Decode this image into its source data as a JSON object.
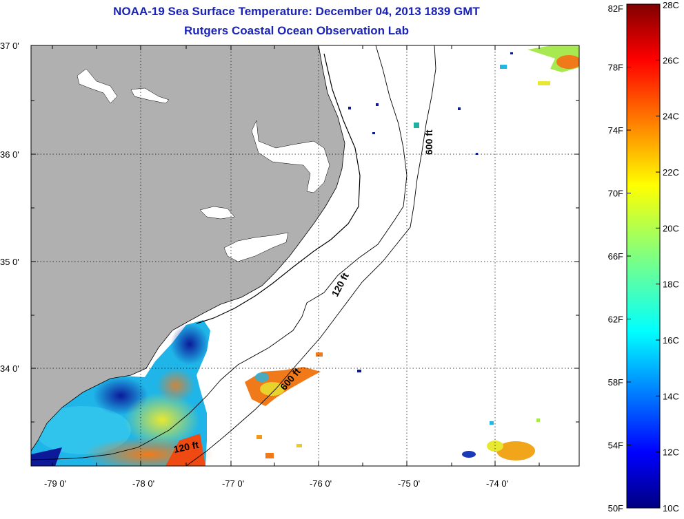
{
  "title_line1": "NOAA-19 Sea Surface Temperature:  December 04, 2013 1839 GMT",
  "title_line2": "Rutgers Coastal Ocean Observation Lab",
  "map": {
    "lat_labels": [
      "37 0'",
      "36 0'",
      "35 0'",
      "34 0'"
    ],
    "lon_labels": [
      "-79 0'",
      "-78 0'",
      "-77 0'",
      "-76 0'",
      "-75 0'",
      "-74 0'"
    ],
    "contour_labels": {
      "c120_north": "120 ft",
      "c600_north": "600 ft",
      "c600_south": "600 ft",
      "c120_south": "120 ft"
    },
    "land_color": "#b0b0b0",
    "grid": "dotted"
  },
  "colorbar": {
    "fahrenheit_labels": [
      "82F",
      "78F",
      "74F",
      "70F",
      "66F",
      "62F",
      "58F",
      "54F",
      "50F"
    ],
    "celsius_labels": [
      "28C",
      "26C",
      "24C",
      "22C",
      "20C",
      "18C",
      "16C",
      "14C",
      "12C",
      "10C"
    ],
    "colormap": "jet",
    "min_c": 10,
    "max_c": 28
  }
}
